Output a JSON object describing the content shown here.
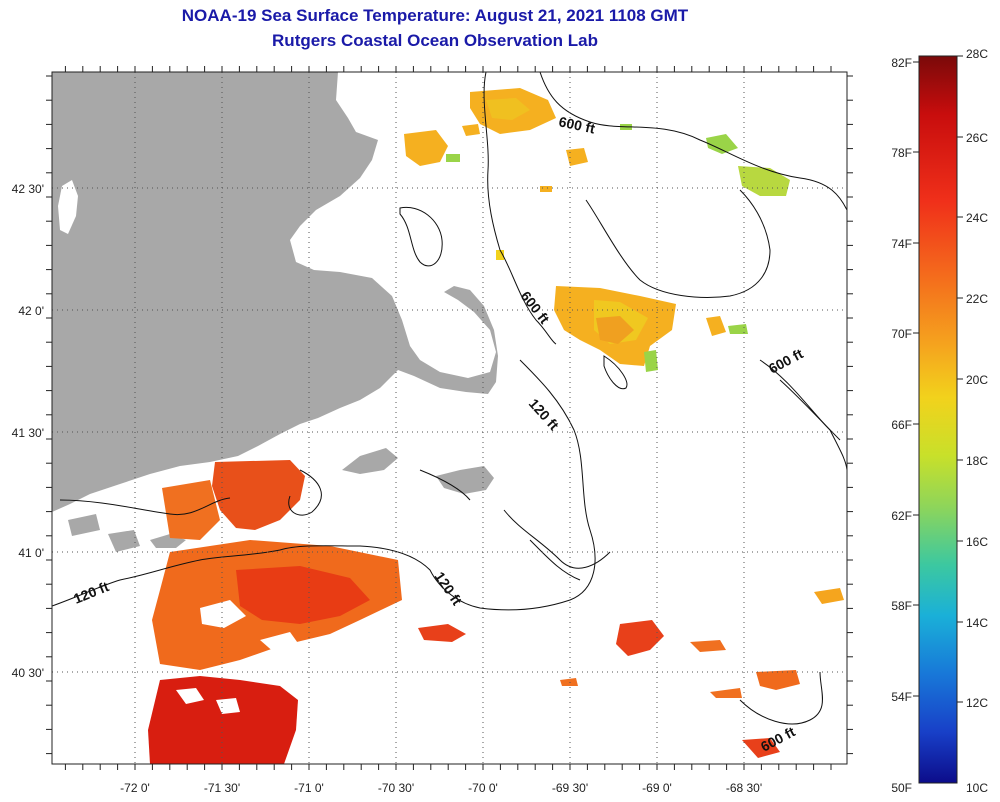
{
  "title": {
    "line1": "NOAA-19 Sea Surface Temperature:  August 21, 2021 1108 GMT",
    "line2": "Rutgers Coastal Ocean Observation Lab"
  },
  "map": {
    "lon_ticks": [
      "-72 0'",
      "-71 30'",
      "-71 0'",
      "-70 30'",
      "-70 0'",
      "-69 30'",
      "-69 0'",
      "-68 30'"
    ],
    "lat_ticks": [
      "42 30'",
      "42 0'",
      "41 30'",
      "41 0'",
      "40 30'"
    ],
    "contour_labels": [
      "600 ft",
      "600 ft",
      "600 ft",
      "600 ft",
      "120 ft",
      "120 ft",
      "120 ft"
    ]
  },
  "colorbar": {
    "f_labels": [
      "82F",
      "78F",
      "74F",
      "70F",
      "66F",
      "62F",
      "58F",
      "54F",
      "50F"
    ],
    "c_labels": [
      "28C",
      "26C",
      "24C",
      "22C",
      "20C",
      "18C",
      "16C",
      "14C",
      "12C",
      "10C"
    ],
    "colors": [
      "#7a0a0a",
      "#c80d0d",
      "#f0301a",
      "#f46a1c",
      "#f5a51e",
      "#f2d21c",
      "#c8e02a",
      "#8ed55a",
      "#3cc8a0",
      "#1ab0d8",
      "#1878d8",
      "#1840c8",
      "#0c0c8a"
    ]
  },
  "legend_colors": {
    "land": "#a8a8a8",
    "sst_hot": "#e02010",
    "sst_warm": "#f07020",
    "sst_mid": "#f5b020",
    "sst_cool": "#9ad448"
  }
}
